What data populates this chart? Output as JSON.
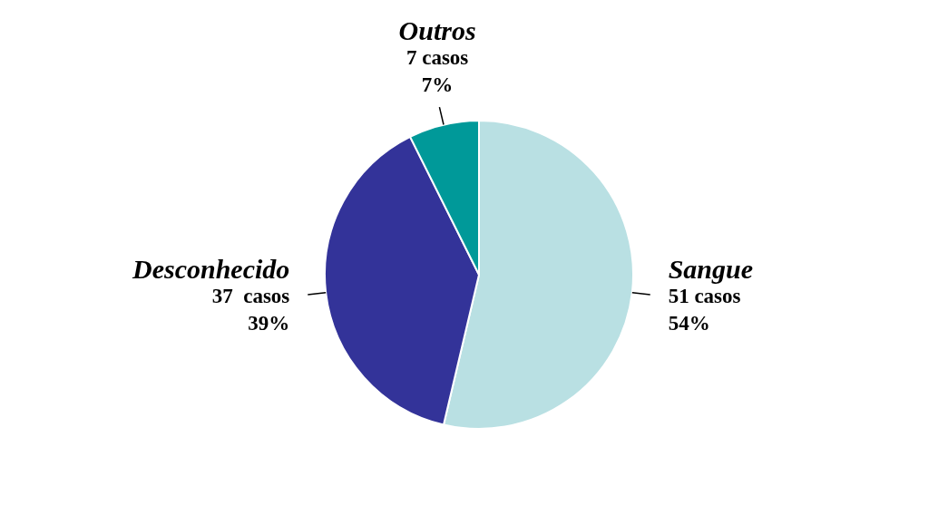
{
  "chart_data": {
    "type": "pie",
    "categories": [
      "Sangue",
      "Desconhecido",
      "Outros"
    ],
    "values": [
      51,
      37,
      7
    ],
    "colors": [
      "#b9e0e3",
      "#333399",
      "#009999"
    ],
    "value_labels": [
      "51 casos\n54%",
      "37  casos\n39%",
      "7 casos\n7%"
    ],
    "legend": false
  }
}
